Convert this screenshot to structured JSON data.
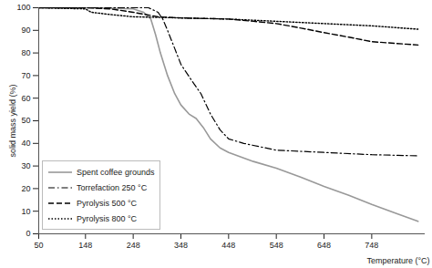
{
  "chart_data": {
    "type": "line",
    "x_label": "Temperature (°C)",
    "y_label": "solid mass yield (%)",
    "xlim": [
      50,
      860
    ],
    "xticks": [
      50,
      148,
      248,
      348,
      448,
      548,
      648,
      748
    ],
    "ylim": [
      0,
      100
    ],
    "yticks": [
      0,
      10,
      20,
      30,
      40,
      50,
      60,
      70,
      80,
      90,
      100
    ],
    "grid": false,
    "legend": "bottom-left",
    "series": [
      {
        "name": "Spent coffee grounds",
        "color": "#999999",
        "line_style": "solid",
        "x": [
          50,
          148,
          248,
          270,
          285,
          295,
          305,
          320,
          335,
          348,
          365,
          380,
          395,
          410,
          430,
          448,
          500,
          548,
          600,
          648,
          700,
          748,
          800,
          845
        ],
        "values": [
          100,
          100,
          99.5,
          98,
          95,
          88,
          80,
          70,
          62,
          57,
          53,
          51,
          47,
          42,
          38,
          36,
          32,
          29,
          25,
          21,
          17,
          13,
          9,
          5.5
        ]
      },
      {
        "name": "Torrefaction 250 °C",
        "color": "#000000",
        "line_style": "dashdot",
        "x": [
          50,
          148,
          248,
          280,
          300,
          310,
          320,
          335,
          348,
          370,
          390,
          410,
          430,
          448,
          480,
          548,
          648,
          748,
          845
        ],
        "values": [
          100,
          100,
          100,
          100,
          98,
          95,
          90,
          82,
          75,
          68,
          62,
          53,
          46,
          42,
          40,
          37,
          36,
          35,
          34.5
        ]
      },
      {
        "name": "Pyrolysis 500 °C",
        "color": "#000000",
        "line_style": "dashed",
        "x": [
          50,
          148,
          200,
          248,
          300,
          348,
          448,
          500,
          548,
          600,
          648,
          700,
          748,
          845
        ],
        "values": [
          100,
          100,
          99.5,
          98,
          96,
          95.5,
          95,
          94,
          93,
          91,
          89,
          87,
          85,
          83.5
        ]
      },
      {
        "name": "Pyrolysis 800 °C",
        "color": "#000000",
        "line_style": "dotted",
        "x": [
          50,
          148,
          160,
          200,
          248,
          348,
          448,
          548,
          648,
          748,
          845
        ],
        "values": [
          100,
          99.5,
          98,
          97,
          96,
          95.5,
          95,
          94,
          93,
          92,
          90.5
        ]
      }
    ]
  }
}
